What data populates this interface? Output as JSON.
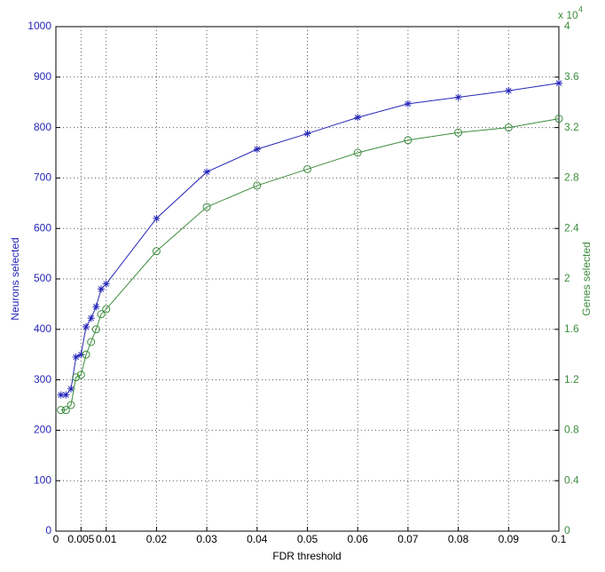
{
  "chart_data": {
    "type": "line",
    "x_label": "FDR threshold",
    "y_label": "Neurons selected",
    "y2_label": "Genes selected",
    "y2_scale_base": "x 10",
    "y2_scale_exponent": "4",
    "x": [
      0.001,
      0.002,
      0.003,
      0.004,
      0.005,
      0.006,
      0.007,
      0.008,
      0.009,
      0.01,
      0.02,
      0.03,
      0.04,
      0.05,
      0.06,
      0.07,
      0.08,
      0.09,
      0.1
    ],
    "series": [
      {
        "name": "Neurons selected",
        "color": "#2626b8",
        "marker": "star",
        "values": [
          270,
          270,
          282,
          345,
          350,
          405,
          422,
          445,
          480,
          490,
          620,
          712,
          757,
          788,
          820,
          847,
          860,
          873,
          888
        ]
      },
      {
        "name": "Genes selected",
        "color": "#3d8c3d",
        "marker": "circle",
        "axis": "y2",
        "values": [
          0.96,
          0.96,
          1.0,
          1.22,
          1.24,
          1.4,
          1.5,
          1.6,
          1.72,
          1.76,
          2.22,
          2.57,
          2.74,
          2.87,
          3.0,
          3.1,
          3.16,
          3.2,
          3.27
        ]
      }
    ],
    "xlim": [
      0,
      0.1
    ],
    "xticks": [
      0,
      0.005,
      0.01,
      0.02,
      0.03,
      0.04,
      0.05,
      0.06,
      0.07,
      0.08,
      0.09,
      0.1
    ],
    "ylim": [
      0,
      1000
    ],
    "yticks": [
      0,
      100,
      200,
      300,
      400,
      500,
      600,
      700,
      800,
      900,
      1000
    ],
    "y2lim": [
      0,
      4
    ],
    "y2ticks": [
      0,
      0.4,
      0.8,
      1.2,
      1.6,
      2,
      2.4,
      2.8,
      3.2,
      3.6,
      4
    ],
    "grid": true
  }
}
